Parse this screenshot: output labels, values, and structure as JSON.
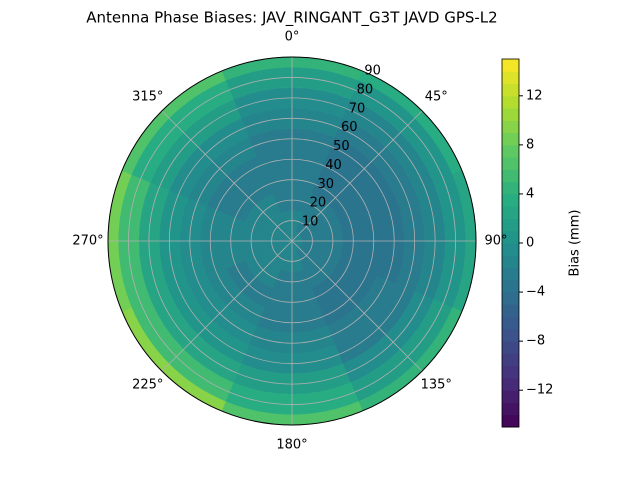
{
  "chart_data": {
    "type": "polar-contour",
    "title": "Antenna Phase Biases: JAV_RINGANT_G3T JAVD GPS-L2",
    "x": [
      0,
      45,
      90,
      135,
      180,
      225,
      270,
      315
    ],
    "y": [
      0,
      10,
      20,
      30,
      40,
      50,
      60,
      70,
      80,
      90
    ],
    "z": [
      [
        -2,
        -2,
        -3,
        -3,
        -3,
        -3,
        -2,
        -1,
        1,
        4
      ],
      [
        -2,
        -3,
        -3,
        -4,
        -4,
        -4,
        -3,
        -2,
        0,
        3
      ],
      [
        -2,
        -3,
        -3,
        -4,
        -4,
        -4,
        -3,
        -2,
        0,
        2
      ],
      [
        -2,
        -3,
        -3,
        -4,
        -4,
        -3,
        -3,
        -1,
        1,
        4
      ],
      [
        -2,
        -2,
        -3,
        -3,
        -3,
        -2,
        -1,
        1,
        3,
        6
      ],
      [
        -2,
        -2,
        -2,
        -3,
        -2,
        -1,
        0,
        2,
        5,
        9
      ],
      [
        -2,
        -2,
        -2,
        -2,
        -2,
        -1,
        0,
        2,
        5,
        8
      ],
      [
        -2,
        -2,
        -2,
        -3,
        -3,
        -2,
        -1,
        1,
        3,
        6
      ]
    ],
    "xticks": [
      {
        "value": 0,
        "label": "0°"
      },
      {
        "value": 45,
        "label": "45°"
      },
      {
        "value": 90,
        "label": "90°"
      },
      {
        "value": 135,
        "label": "135°"
      },
      {
        "value": 180,
        "label": "180°"
      },
      {
        "value": 225,
        "label": "225°"
      },
      {
        "value": 270,
        "label": "270°"
      },
      {
        "value": 315,
        "label": "315°"
      }
    ],
    "ylim": [
      0,
      90
    ],
    "yticks": [
      10,
      20,
      30,
      40,
      50,
      60,
      70,
      80,
      90
    ],
    "clim": [
      -15,
      15
    ],
    "cticks": [
      {
        "value": -12,
        "label": "−12"
      },
      {
        "value": -8,
        "label": "−8"
      },
      {
        "value": -4,
        "label": "−4"
      },
      0,
      4,
      8,
      12
    ],
    "colorbar_label": "Bias (mm)",
    "colormap": "viridis",
    "grid": true
  }
}
